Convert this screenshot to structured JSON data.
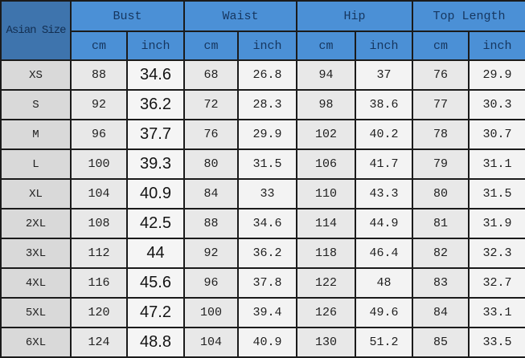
{
  "colors": {
    "header_blue": "#4b90d6",
    "corner_blue": "#3e74ad",
    "header_text": "#16365f",
    "border": "#1b1b1b",
    "size_col_bg": "#d9d9d9",
    "cm_col_bg": "#e8e8e8",
    "inch_col_bg": "#f3f3f3",
    "body_text": "#1f1f1f"
  },
  "chart_data": {
    "type": "table",
    "title": "Asian Size garment measurement chart",
    "corner_label": "Asian Size",
    "groups": [
      "Bust",
      "Waist",
      "Hip",
      "Top Length"
    ],
    "subheaders": [
      "cm",
      "inch",
      "cm",
      "inch",
      "cm",
      "inch",
      "cm",
      "inch"
    ],
    "column_keys": [
      "size",
      "bust_cm",
      "bust_inch",
      "waist_cm",
      "waist_inch",
      "hip_cm",
      "hip_inch",
      "top_length_cm",
      "top_length_inch"
    ],
    "rows": [
      {
        "size": "XS",
        "values": [
          "88",
          "34.6",
          "68",
          "26.8",
          "94",
          "37",
          "76",
          "29.9"
        ]
      },
      {
        "size": "S",
        "values": [
          "92",
          "36.2",
          "72",
          "28.3",
          "98",
          "38.6",
          "77",
          "30.3"
        ]
      },
      {
        "size": "M",
        "values": [
          "96",
          "37.7",
          "76",
          "29.9",
          "102",
          "40.2",
          "78",
          "30.7"
        ]
      },
      {
        "size": "L",
        "values": [
          "100",
          "39.3",
          "80",
          "31.5",
          "106",
          "41.7",
          "79",
          "31.1"
        ]
      },
      {
        "size": "XL",
        "values": [
          "104",
          "40.9",
          "84",
          "33",
          "110",
          "43.3",
          "80",
          "31.5"
        ]
      },
      {
        "size": "2XL",
        "values": [
          "108",
          "42.5",
          "88",
          "34.6",
          "114",
          "44.9",
          "81",
          "31.9"
        ]
      },
      {
        "size": "3XL",
        "values": [
          "112",
          "44",
          "92",
          "36.2",
          "118",
          "46.4",
          "82",
          "32.3"
        ]
      },
      {
        "size": "4XL",
        "values": [
          "116",
          "45.6",
          "96",
          "37.8",
          "122",
          "48",
          "83",
          "32.7"
        ]
      },
      {
        "size": "5XL",
        "values": [
          "120",
          "47.2",
          "100",
          "39.4",
          "126",
          "49.6",
          "84",
          "33.1"
        ]
      },
      {
        "size": "6XL",
        "values": [
          "124",
          "48.8",
          "104",
          "40.9",
          "130",
          "51.2",
          "85",
          "33.5"
        ]
      }
    ]
  }
}
